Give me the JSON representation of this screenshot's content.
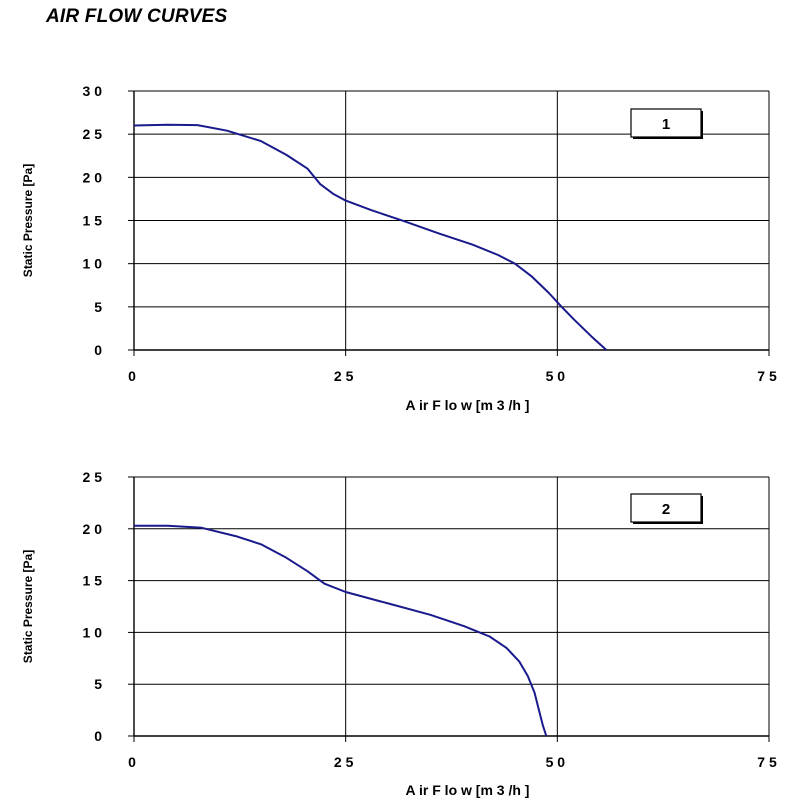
{
  "page": {
    "title": "AIR FLOW CURVES"
  },
  "chart_data": [
    {
      "type": "line",
      "badge": "1",
      "xlabel": "A ir F lo w [m 3 /h ]",
      "ylabel": "Static Pressure [Pa]",
      "xlim": [
        0,
        75
      ],
      "ylim": [
        0,
        30
      ],
      "x_ticks": [
        0,
        25,
        50,
        75
      ],
      "x_tick_labels": [
        "0",
        "2 5",
        "5 0",
        "7 5"
      ],
      "y_ticks": [
        0,
        5,
        10,
        15,
        20,
        25,
        30
      ],
      "y_tick_labels": [
        "0",
        "5",
        "1 0",
        "1 5",
        "2 0",
        "2 5",
        "3 0"
      ],
      "grid": true,
      "series": [
        {
          "color": "#1a1a8c",
          "points": [
            [
              0,
              26.0
            ],
            [
              4,
              26.1
            ],
            [
              7.5,
              26.05
            ],
            [
              11,
              25.4
            ],
            [
              15,
              24.2
            ],
            [
              18,
              22.6
            ],
            [
              20.5,
              21.0
            ],
            [
              22,
              19.2
            ],
            [
              23.5,
              18.1
            ],
            [
              25,
              17.3
            ],
            [
              28,
              16.2
            ],
            [
              32,
              14.9
            ],
            [
              36,
              13.5
            ],
            [
              40,
              12.2
            ],
            [
              43,
              11.0
            ],
            [
              45,
              10.0
            ],
            [
              47,
              8.5
            ],
            [
              49,
              6.6
            ],
            [
              50.5,
              5.0
            ],
            [
              52,
              3.5
            ],
            [
              54,
              1.6
            ],
            [
              55.8,
              0.0
            ]
          ]
        }
      ]
    },
    {
      "type": "line",
      "badge": "2",
      "xlabel": "A ir F lo w [m 3 /h ]",
      "ylabel": "Static Pressure [Pa]",
      "xlim": [
        0,
        75
      ],
      "ylim": [
        0,
        25
      ],
      "x_ticks": [
        0,
        25,
        50,
        75
      ],
      "x_tick_labels": [
        "0",
        "2 5",
        "5 0",
        "7 5"
      ],
      "y_ticks": [
        0,
        5,
        10,
        15,
        20,
        25
      ],
      "y_tick_labels": [
        "0",
        "5",
        "1 0",
        "1 5",
        "2 0",
        "2 5"
      ],
      "grid": true,
      "series": [
        {
          "color": "#1a1a8c",
          "points": [
            [
              0,
              20.3
            ],
            [
              4,
              20.3
            ],
            [
              8,
              20.1
            ],
            [
              12,
              19.3
            ],
            [
              15,
              18.5
            ],
            [
              18,
              17.2
            ],
            [
              20.5,
              15.9
            ],
            [
              22.5,
              14.7
            ],
            [
              25,
              13.9
            ],
            [
              30,
              12.8
            ],
            [
              35,
              11.7
            ],
            [
              39,
              10.6
            ],
            [
              42,
              9.6
            ],
            [
              44,
              8.5
            ],
            [
              45.5,
              7.2
            ],
            [
              46.5,
              5.8
            ],
            [
              47.3,
              4.2
            ],
            [
              47.8,
              2.6
            ],
            [
              48.3,
              1.0
            ],
            [
              48.7,
              0.0
            ]
          ]
        }
      ]
    }
  ]
}
